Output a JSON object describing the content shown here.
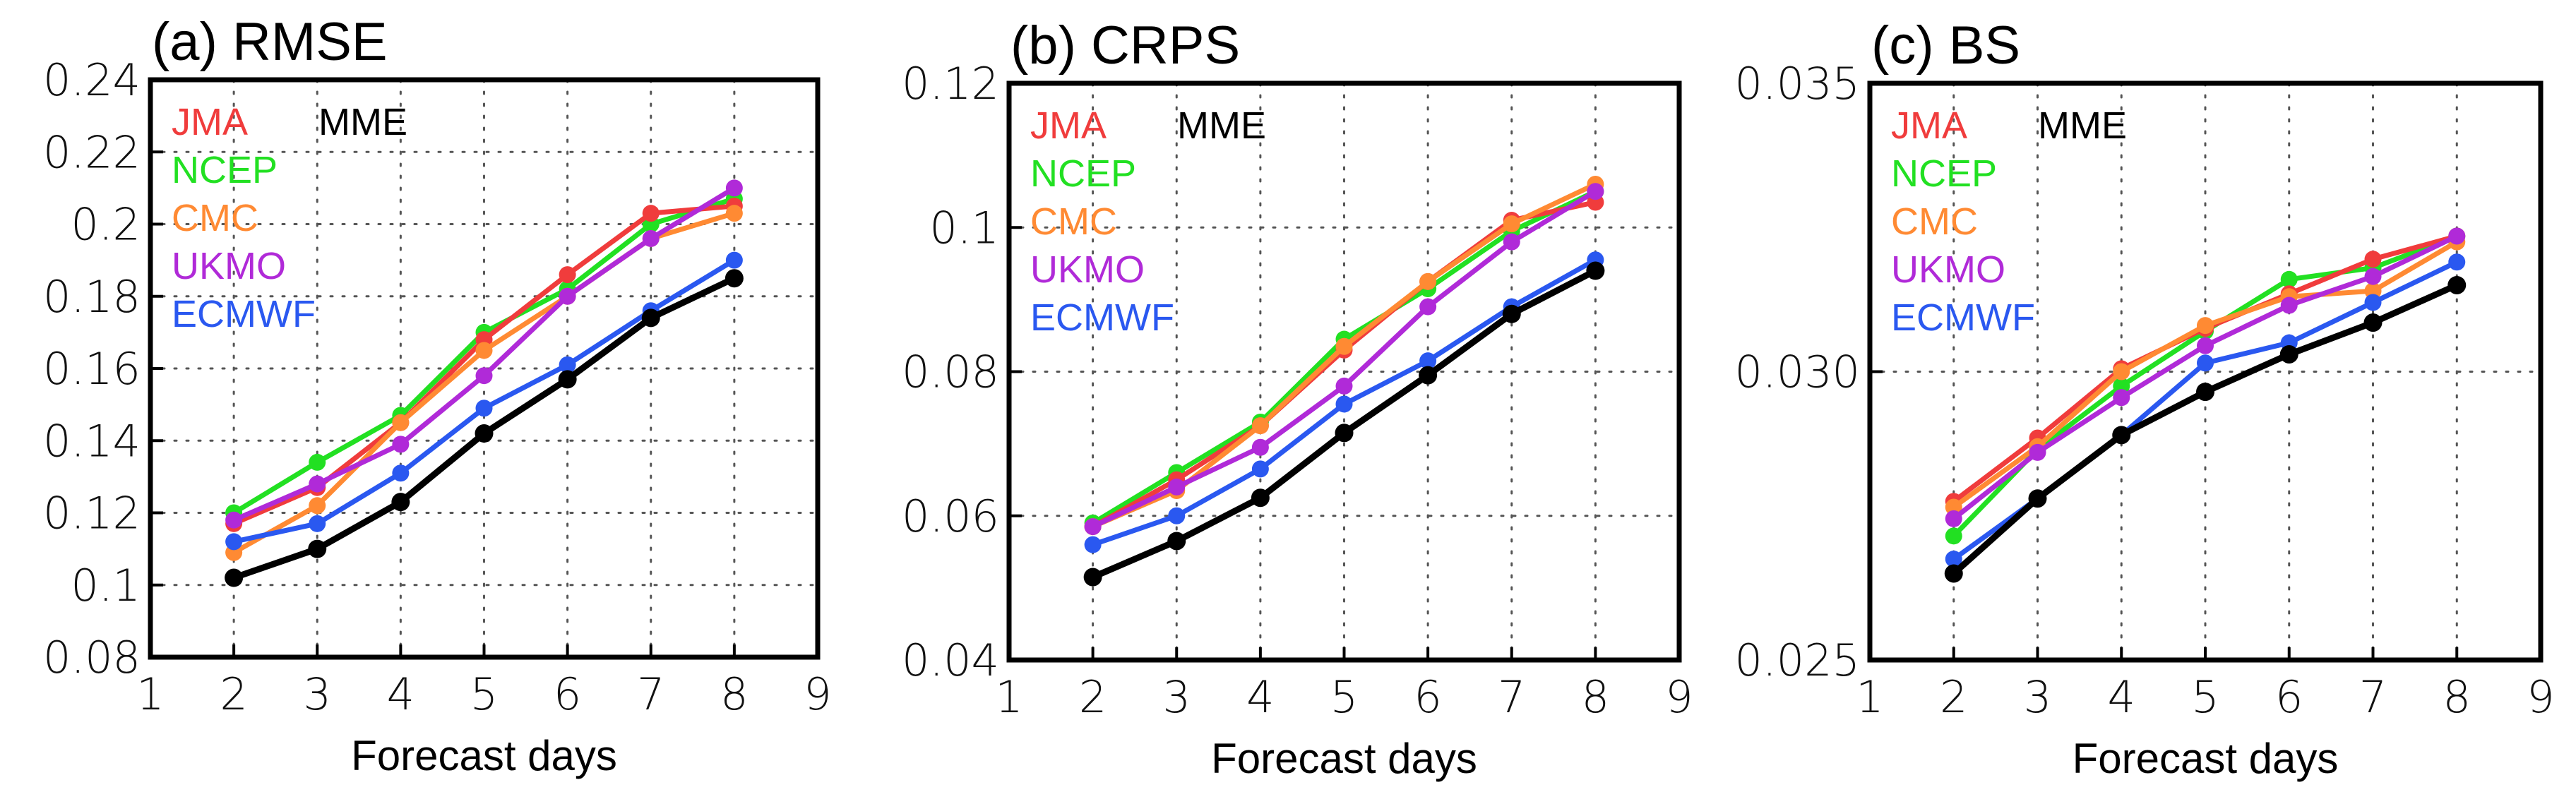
{
  "colors": {
    "JMA": "#f03c3c",
    "NCEP": "#22e022",
    "CMC": "#ff8a33",
    "UKMO": "#b02ad8",
    "ECMWF": "#2a58f0",
    "MME": "#000000"
  },
  "chart_data": [
    {
      "type": "line",
      "title": "(a) RMSE",
      "xlabel": "Forecast days",
      "ylabel": "",
      "xlim": [
        1,
        9
      ],
      "ylim": [
        0.08,
        0.24
      ],
      "xticks": [
        1,
        2,
        3,
        4,
        5,
        6,
        7,
        8,
        9
      ],
      "xtick_labels": [
        "1",
        "2",
        "3",
        "4",
        "5",
        "6",
        "7",
        "8",
        "9"
      ],
      "yticks": [
        0.08,
        0.1,
        0.12,
        0.14,
        0.16,
        0.18,
        0.2,
        0.22,
        0.24
      ],
      "ytick_labels": [
        "0.08",
        "0.1",
        "0.12",
        "0.14",
        "0.16",
        "0.18",
        "0.2",
        "0.22",
        "0.24"
      ],
      "grid": true,
      "x": [
        2,
        3,
        4,
        5,
        6,
        7,
        8
      ],
      "series": [
        {
          "name": "JMA",
          "values": [
            0.117,
            0.127,
            0.145,
            0.168,
            0.186,
            0.203,
            0.205
          ]
        },
        {
          "name": "NCEP",
          "values": [
            0.12,
            0.134,
            0.147,
            0.17,
            0.182,
            0.2,
            0.207
          ]
        },
        {
          "name": "CMC",
          "values": [
            0.109,
            0.122,
            0.145,
            0.165,
            0.18,
            0.196,
            0.203
          ]
        },
        {
          "name": "UKMO",
          "values": [
            0.118,
            0.128,
            0.139,
            0.158,
            0.18,
            0.196,
            0.21
          ]
        },
        {
          "name": "ECMWF",
          "values": [
            0.112,
            0.117,
            0.131,
            0.149,
            0.161,
            0.176,
            0.19
          ]
        },
        {
          "name": "MME",
          "values": [
            0.102,
            0.11,
            0.123,
            0.142,
            0.157,
            0.174,
            0.185
          ]
        }
      ]
    },
    {
      "type": "line",
      "title": "(b) CRPS",
      "xlabel": "Forecast days",
      "ylabel": "",
      "xlim": [
        1,
        9
      ],
      "ylim": [
        0.04,
        0.12
      ],
      "xticks": [
        1,
        2,
        3,
        4,
        5,
        6,
        7,
        8,
        9
      ],
      "xtick_labels": [
        "1",
        "2",
        "3",
        "4",
        "5",
        "6",
        "7",
        "8",
        "9"
      ],
      "yticks": [
        0.04,
        0.06,
        0.08,
        0.1,
        0.12
      ],
      "ytick_labels": [
        "0.04",
        "0.06",
        "0.08",
        "0.1",
        "0.12"
      ],
      "grid": true,
      "x": [
        2,
        3,
        4,
        5,
        6,
        7,
        8
      ],
      "series": [
        {
          "name": "JMA",
          "values": [
            0.0585,
            0.065,
            0.0725,
            0.083,
            0.0925,
            0.101,
            0.1035
          ]
        },
        {
          "name": "NCEP",
          "values": [
            0.059,
            0.066,
            0.073,
            0.0845,
            0.0915,
            0.0995,
            0.105
          ]
        },
        {
          "name": "CMC",
          "values": [
            0.0585,
            0.0635,
            0.0725,
            0.0835,
            0.0925,
            0.1005,
            0.106
          ]
        },
        {
          "name": "UKMO",
          "values": [
            0.0585,
            0.064,
            0.0695,
            0.078,
            0.089,
            0.098,
            0.105
          ]
        },
        {
          "name": "ECMWF",
          "values": [
            0.056,
            0.06,
            0.0665,
            0.0755,
            0.0815,
            0.089,
            0.0955
          ]
        },
        {
          "name": "MME",
          "values": [
            0.0515,
            0.0565,
            0.0625,
            0.0715,
            0.0795,
            0.088,
            0.094
          ]
        }
      ]
    },
    {
      "type": "line",
      "title": "(c) BS",
      "xlabel": "Forecast days",
      "ylabel": "",
      "xlim": [
        1,
        9
      ],
      "ylim": [
        0.025,
        0.035
      ],
      "xticks": [
        1,
        2,
        3,
        4,
        5,
        6,
        7,
        8,
        9
      ],
      "xtick_labels": [
        "1",
        "2",
        "3",
        "4",
        "5",
        "6",
        "7",
        "8",
        "9"
      ],
      "yticks": [
        0.025,
        0.03,
        0.035
      ],
      "ytick_labels": [
        "0.025",
        "0.030",
        "0.035"
      ],
      "grid": true,
      "x": [
        2,
        3,
        4,
        5,
        6,
        7,
        8
      ],
      "series": [
        {
          "name": "JMA",
          "values": [
            0.02775,
            0.02885,
            0.03005,
            0.03075,
            0.03135,
            0.03195,
            0.03235
          ]
        },
        {
          "name": "NCEP",
          "values": [
            0.02715,
            0.02865,
            0.02975,
            0.0307,
            0.0316,
            0.0318,
            0.03235
          ]
        },
        {
          "name": "CMC",
          "values": [
            0.02765,
            0.0287,
            0.03,
            0.0308,
            0.0313,
            0.0314,
            0.03225
          ]
        },
        {
          "name": "UKMO",
          "values": [
            0.02745,
            0.0286,
            0.02955,
            0.03045,
            0.03115,
            0.03165,
            0.03235
          ]
        },
        {
          "name": "ECMWF",
          "values": [
            0.02675,
            0.0278,
            0.0289,
            0.03015,
            0.0305,
            0.0312,
            0.0319
          ]
        },
        {
          "name": "MME",
          "values": [
            0.0265,
            0.0278,
            0.0289,
            0.02965,
            0.0303,
            0.03085,
            0.0315
          ]
        }
      ]
    }
  ]
}
